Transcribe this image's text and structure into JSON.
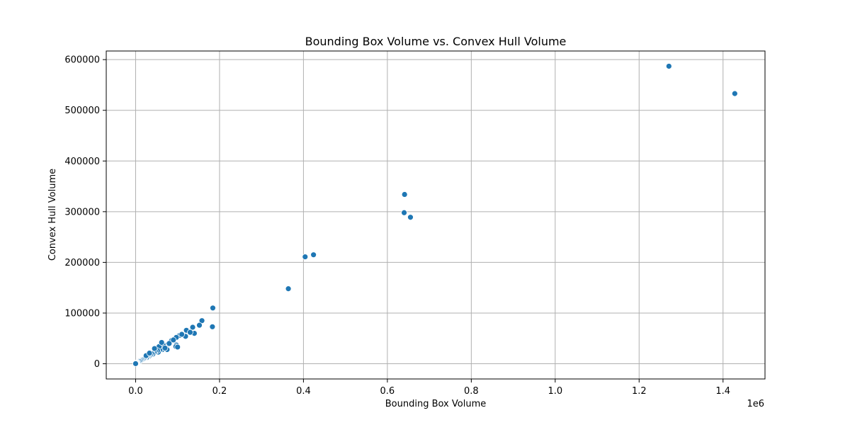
{
  "chart_data": {
    "type": "scatter",
    "title": "Bounding Box Volume vs. Convex Hull Volume",
    "xlabel": "Bounding Box Volume",
    "ylabel": "Convex Hull Volume",
    "x_offset_text": "1e6",
    "x_tick_scale": 1000000,
    "xlim": [
      -70000,
      1500000
    ],
    "ylim": [
      -30000,
      617000
    ],
    "x_ticks": [
      0,
      200000,
      400000,
      600000,
      800000,
      1000000,
      1200000,
      1400000
    ],
    "x_tick_labels": [
      "0.0",
      "0.2",
      "0.4",
      "0.6",
      "0.8",
      "1.0",
      "1.2",
      "1.4"
    ],
    "y_ticks": [
      0,
      100000,
      200000,
      300000,
      400000,
      500000,
      600000
    ],
    "y_tick_labels": [
      "0",
      "100000",
      "200000",
      "300000",
      "400000",
      "500000",
      "600000"
    ],
    "grid": true,
    "marker_color": "#1f77b4",
    "marker_edge_color": "#ffffff",
    "series": [
      {
        "x": [
          1271000,
          1428000,
          641000,
          640000,
          655000,
          404000,
          424000,
          364000,
          184000,
          183000,
          158000,
          152000,
          136000,
          140000,
          121000,
          119000,
          105000,
          97000,
          97000,
          96000,
          86000,
          76000,
          75000,
          72000,
          69000,
          66000,
          64000,
          58000,
          56000,
          54000,
          52000,
          47000,
          44000,
          41000,
          38000,
          35000,
          32000,
          30000,
          28000,
          26000,
          24000,
          22000,
          20000,
          18000,
          16000,
          14000,
          12000,
          10000,
          8000,
          6000,
          4000,
          3000,
          2000,
          1000,
          500,
          0,
          25000,
          45000,
          62000,
          80000,
          90000,
          110000,
          130000,
          33000,
          70000,
          100000
        ],
        "y": [
          587000,
          533000,
          334000,
          298000,
          289000,
          211000,
          215000,
          148000,
          110000,
          73000,
          85000,
          76000,
          72000,
          60000,
          66000,
          54000,
          56000,
          52000,
          37000,
          34000,
          46000,
          38000,
          28000,
          36000,
          33000,
          36000,
          28000,
          27000,
          34000,
          23000,
          26000,
          25000,
          22000,
          19000,
          20000,
          17000,
          15000,
          16000,
          14000,
          12000,
          14000,
          11000,
          10000,
          9000,
          8000,
          7000,
          6000,
          5000,
          4500,
          3000,
          2500,
          2000,
          1500,
          1000,
          500,
          200,
          16000,
          30000,
          42000,
          40000,
          47000,
          58000,
          62000,
          21000,
          31000,
          33000
        ]
      }
    ]
  }
}
